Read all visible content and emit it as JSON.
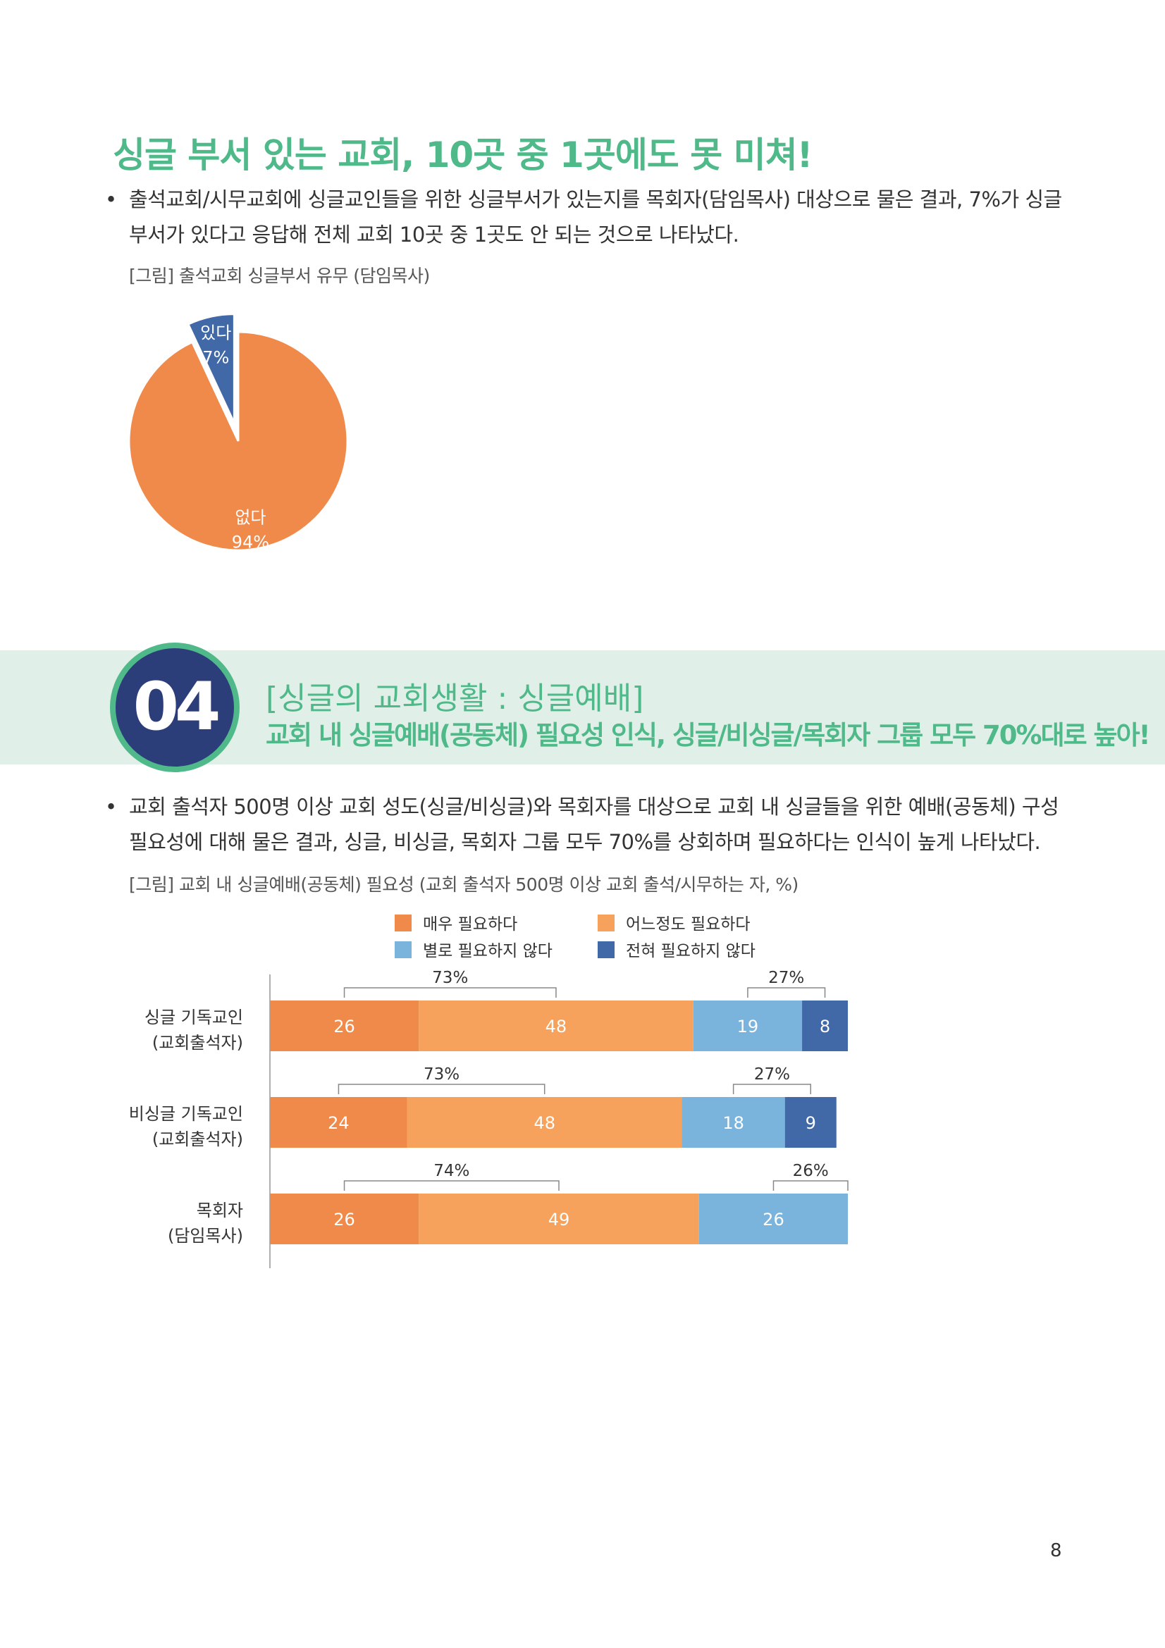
{
  "heading1": "싱글 부서 있는 교회, 10곳 중 1곳에도 못 미쳐!",
  "bullet_symbol": "•",
  "para1": "출석교회/시무교회에 싱글교인들을 위한 싱글부서가 있는지를 목회자(담임목사) 대상으로 물은 결과, 7%가 싱글 부서가 있다고 응답해 전체 교회 10곳 중 1곳도 안 되는 것으로 나타났다.",
  "caption1": "[그림] 출석교회 싱글부서 유무 (담임목사)",
  "section": {
    "number": "04",
    "title": "[싱글의 교회생활 : 싱글예배]",
    "subtitle": "교회 내 싱글예배(공동체) 필요성 인식, 싱글/비싱글/목회자 그룹 모두 70%대로 높아!"
  },
  "para2": "교회 출석자 500명 이상 교회 성도(싱글/비싱글)와 목회자를 대상으로 교회 내 싱글들을 위한 예배(공동체) 구성 필요성에 대해 물은 결과, 싱글, 비싱글, 목회자 그룹 모두 70%를 상회하며 필요하다는 인식이 높게 나타났다.",
  "caption2": "[그림] 교회 내 싱글예배(공동체) 필요성 (교회 출석자 500명 이상 교회 출석/시무하는 자, %)",
  "page_number": "8",
  "chart_data": [
    {
      "type": "pie",
      "slices": [
        {
          "label": "있다",
          "value": 7,
          "display": "7%",
          "color": "#4169a8",
          "exploded": true
        },
        {
          "label": "없다",
          "value": 94,
          "display": "94%",
          "color": "#f08a4b"
        }
      ]
    },
    {
      "type": "bar",
      "orientation": "horizontal",
      "stacked": true,
      "legend_position": "top",
      "categories": [
        [
          "싱글 기독교인",
          "(교회출석자)"
        ],
        [
          "비싱글 기독교인",
          "(교회출석자)"
        ],
        [
          "목회자",
          "(담임목사)"
        ]
      ],
      "series": [
        {
          "name": "매우 필요하다",
          "color": "#f08a4b",
          "values": [
            26,
            24,
            26
          ]
        },
        {
          "name": "어느정도 필요하다",
          "color": "#f6a25c",
          "values": [
            48,
            48,
            49
          ]
        },
        {
          "name": "별로 필요하지 않다",
          "color": "#7ab3dc",
          "values": [
            19,
            18,
            26
          ]
        },
        {
          "name": "전혀 필요하지 않다",
          "color": "#4169a8",
          "values": [
            8,
            9,
            0
          ]
        }
      ],
      "bracket_totals": {
        "positive": [
          "73%",
          "73%",
          "74%"
        ],
        "negative": [
          "27%",
          "27%",
          "26%"
        ]
      }
    }
  ]
}
